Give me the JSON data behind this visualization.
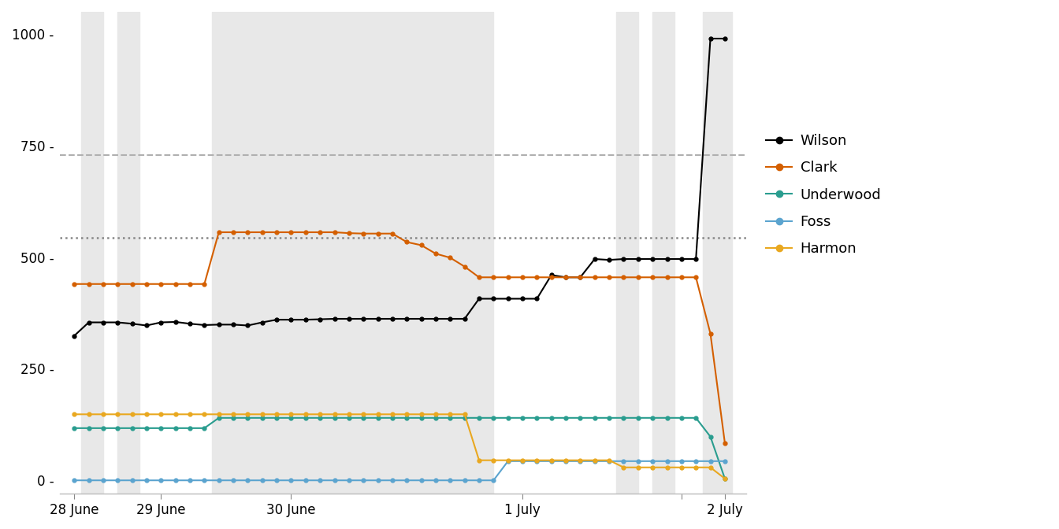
{
  "title": "",
  "xlabel": "",
  "ylabel": "",
  "ylim": [
    -30,
    1050
  ],
  "yticks": [
    0,
    250,
    500,
    750,
    1000
  ],
  "reference_line_2thirds": 728.8,
  "reference_line_majority": 544,
  "background_color": "#ffffff",
  "plot_bg_color": "#ffffff",
  "shaded_regions": [
    [
      1.5,
      3.0
    ],
    [
      4.0,
      5.5
    ],
    [
      10.5,
      30.0
    ],
    [
      38.5,
      40.0
    ],
    [
      41.0,
      42.5
    ],
    [
      44.5,
      46.5
    ]
  ],
  "x_tick_positions": [
    1,
    7,
    16,
    32,
    43,
    46
  ],
  "x_tick_labels": [
    "28 June",
    "29 June",
    "30 June",
    "1 July",
    "",
    "2 July"
  ],
  "series": {
    "Wilson": {
      "color": "#000000",
      "ballots": [
        1,
        2,
        3,
        4,
        5,
        6,
        7,
        8,
        9,
        10,
        11,
        12,
        13,
        14,
        15,
        16,
        17,
        18,
        19,
        20,
        21,
        22,
        23,
        24,
        25,
        26,
        27,
        28,
        29,
        30,
        31,
        32,
        33,
        34,
        35,
        36,
        37,
        38,
        39,
        40,
        41,
        42,
        43,
        44,
        45,
        46
      ],
      "votes": [
        324,
        354,
        354,
        354,
        351,
        347,
        354,
        355,
        351,
        348,
        349,
        349,
        347,
        354,
        360,
        360,
        360,
        361,
        362,
        362,
        362,
        362,
        362,
        362,
        362,
        362,
        362,
        362,
        407,
        407,
        407,
        407,
        407,
        460,
        455,
        455,
        496,
        494,
        496,
        496,
        496,
        496,
        496,
        496,
        990,
        990
      ]
    },
    "Clark": {
      "color": "#d45f00",
      "ballots": [
        1,
        2,
        3,
        4,
        5,
        6,
        7,
        8,
        9,
        10,
        11,
        12,
        13,
        14,
        15,
        16,
        17,
        18,
        19,
        20,
        21,
        22,
        23,
        24,
        25,
        26,
        27,
        28,
        29,
        30,
        31,
        32,
        33,
        34,
        35,
        36,
        37,
        38,
        39,
        40,
        41,
        42,
        43,
        44,
        45,
        46
      ],
      "votes": [
        440,
        440,
        440,
        440,
        440,
        440,
        440,
        440,
        440,
        440,
        556,
        556,
        556,
        556,
        556,
        556,
        556,
        556,
        556,
        554,
        553,
        553,
        553,
        534,
        527,
        508,
        499,
        479,
        455,
        455,
        455,
        455,
        455,
        455,
        455,
        455,
        455,
        455,
        455,
        455,
        455,
        455,
        455,
        455,
        329,
        84
      ]
    },
    "Underwood": {
      "color": "#2a9d8f",
      "ballots": [
        1,
        2,
        3,
        4,
        5,
        6,
        7,
        8,
        9,
        10,
        11,
        12,
        13,
        14,
        15,
        16,
        17,
        18,
        19,
        20,
        21,
        22,
        23,
        24,
        25,
        26,
        27,
        28,
        29,
        30,
        31,
        32,
        33,
        34,
        35,
        36,
        37,
        38,
        39,
        40,
        41,
        42,
        43,
        44,
        45,
        46
      ],
      "votes": [
        117,
        117,
        117,
        117,
        117,
        117,
        117,
        117,
        117,
        117,
        140,
        140,
        140,
        140,
        140,
        140,
        140,
        140,
        140,
        140,
        140,
        140,
        140,
        140,
        140,
        140,
        140,
        140,
        140,
        140,
        140,
        140,
        140,
        140,
        140,
        140,
        140,
        140,
        140,
        140,
        140,
        140,
        140,
        140,
        98,
        4
      ]
    },
    "Foss": {
      "color": "#5ba4cf",
      "ballots": [
        1,
        2,
        3,
        4,
        5,
        6,
        7,
        8,
        9,
        10,
        11,
        12,
        13,
        14,
        15,
        16,
        17,
        18,
        19,
        20,
        21,
        22,
        23,
        24,
        25,
        26,
        27,
        28,
        29,
        30,
        31,
        32,
        33,
        34,
        35,
        36,
        37,
        38,
        39,
        40,
        41,
        42,
        43,
        44,
        45,
        46
      ],
      "votes": [
        0,
        0,
        0,
        0,
        0,
        0,
        0,
        0,
        0,
        0,
        0,
        0,
        0,
        0,
        0,
        0,
        0,
        0,
        0,
        0,
        0,
        0,
        0,
        0,
        0,
        0,
        0,
        0,
        0,
        0,
        43,
        43,
        43,
        43,
        43,
        43,
        43,
        43,
        43,
        43,
        43,
        43,
        43,
        43,
        43,
        43
      ]
    },
    "Harmon": {
      "color": "#e9a820",
      "ballots": [
        1,
        2,
        3,
        4,
        5,
        6,
        7,
        8,
        9,
        10,
        11,
        12,
        13,
        14,
        15,
        16,
        17,
        18,
        19,
        20,
        21,
        22,
        23,
        24,
        25,
        26,
        27,
        28,
        29,
        30,
        31,
        32,
        33,
        34,
        35,
        36,
        37,
        38,
        39,
        40,
        41,
        42,
        43,
        44,
        45,
        46
      ],
      "votes": [
        148,
        148,
        148,
        148,
        148,
        148,
        148,
        148,
        148,
        148,
        148,
        148,
        148,
        148,
        148,
        148,
        148,
        148,
        148,
        148,
        148,
        148,
        148,
        148,
        148,
        148,
        148,
        148,
        45,
        45,
        45,
        45,
        45,
        45,
        45,
        45,
        45,
        45,
        29,
        29,
        29,
        29,
        29,
        29,
        29,
        4
      ]
    }
  },
  "legend_names": [
    "Wilson",
    "Clark",
    "Underwood",
    "Foss",
    "Harmon"
  ],
  "shaded_color": "#e8e8e8"
}
